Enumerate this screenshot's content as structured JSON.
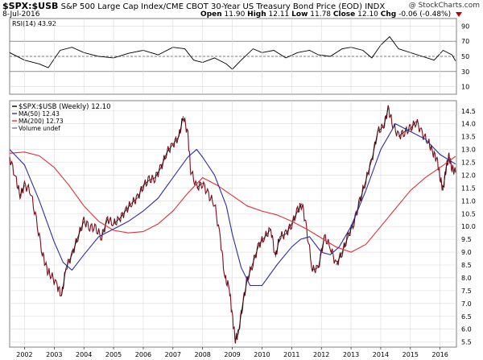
{
  "header": {
    "symbol": "$SPX:$USB",
    "description": "S&P 500 Large Cap Index/CME CBOT 30-Year US Treasury Bond Price (EOD)",
    "exchange": "INDX",
    "date": "8-Jul-2016",
    "brand": "@ StockCharts.com",
    "open_label": "Open",
    "open": "11.90",
    "high_label": "High",
    "high": "12.11",
    "low_label": "Low",
    "low": "11.78",
    "close_label": "Close",
    "close": "12.10",
    "chg_label": "Chg",
    "chg": "-0.06 (-0.48%)"
  },
  "colors": {
    "price": "#7a0b1a",
    "price_black": "#000000",
    "ma50": "#2c2ca8",
    "ma200": "#e0303a",
    "rsi": "#000000",
    "grid": "#d9d9d9",
    "panel_border": "#808080"
  },
  "legend": {
    "price": "$SPX:$USB (Weekly) 12.10",
    "ma50": "MA(50) 12.43",
    "ma200": "MA(200) 12.73",
    "volume": "Volume undef"
  },
  "rsi_label": "RSI(14) 43.92",
  "chart_data": [
    {
      "type": "line",
      "panel": "rsi",
      "series": [
        {
          "name": "RSI(14)",
          "x": [
            2001.5,
            2002.0,
            2002.5,
            2002.8,
            2003.2,
            2003.6,
            2004.0,
            2004.5,
            2005.0,
            2005.5,
            2006.0,
            2006.5,
            2007.0,
            2007.4,
            2007.7,
            2008.0,
            2008.4,
            2008.8,
            2009.0,
            2009.3,
            2009.7,
            2010.0,
            2010.4,
            2010.8,
            2011.2,
            2011.6,
            2011.9,
            2012.3,
            2012.7,
            2013.0,
            2013.4,
            2013.7,
            2014.0,
            2014.3,
            2014.6,
            2015.0,
            2015.4,
            2015.8,
            2016.1,
            2016.4,
            2016.52
          ],
          "y": [
            55,
            45,
            40,
            35,
            58,
            62,
            55,
            50,
            48,
            54,
            58,
            52,
            62,
            60,
            45,
            42,
            48,
            40,
            33,
            45,
            60,
            55,
            58,
            48,
            55,
            58,
            52,
            50,
            60,
            62,
            58,
            48,
            65,
            76,
            60,
            55,
            50,
            45,
            58,
            52,
            44
          ]
        }
      ],
      "ylim": [
        0,
        100
      ],
      "yticks": [
        10,
        30,
        50,
        70,
        90
      ],
      "bands": [
        30,
        50,
        70
      ]
    },
    {
      "type": "line",
      "panel": "price",
      "xlabels": [
        "2002",
        "2003",
        "2004",
        "2005",
        "2006",
        "2007",
        "2008",
        "2009",
        "2010",
        "2011",
        "2012",
        "2013",
        "2014",
        "2015",
        "2016"
      ],
      "xlim": [
        2001.5,
        2016.55
      ],
      "ylim": [
        5.3,
        14.9
      ],
      "yticks": [
        5.5,
        6.0,
        6.5,
        7.0,
        7.5,
        8.0,
        8.5,
        9.0,
        9.5,
        10.0,
        10.5,
        11.0,
        11.5,
        12.0,
        12.5,
        13.0,
        13.5,
        14.0,
        14.5
      ],
      "series": [
        {
          "name": "$SPX:$USB (Weekly)",
          "x": [
            2001.5,
            2001.7,
            2001.85,
            2002.0,
            2002.2,
            2002.4,
            2002.6,
            2002.75,
            2002.9,
            2003.1,
            2003.25,
            2003.4,
            2003.6,
            2003.8,
            2004.0,
            2004.2,
            2004.4,
            2004.6,
            2004.8,
            2005.0,
            2005.2,
            2005.4,
            2005.6,
            2005.8,
            2006.0,
            2006.2,
            2006.4,
            2006.6,
            2006.8,
            2007.0,
            2007.2,
            2007.35,
            2007.5,
            2007.6,
            2007.8,
            2008.0,
            2008.2,
            2008.4,
            2008.6,
            2008.75,
            2008.9,
            2009.0,
            2009.1,
            2009.2,
            2009.35,
            2009.5,
            2009.7,
            2009.9,
            2010.1,
            2010.3,
            2010.45,
            2010.6,
            2010.8,
            2011.0,
            2011.2,
            2011.35,
            2011.5,
            2011.7,
            2011.9,
            2012.1,
            2012.3,
            2012.5,
            2012.7,
            2012.9,
            2013.1,
            2013.3,
            2013.5,
            2013.7,
            2013.9,
            2014.1,
            2014.25,
            2014.4,
            2014.6,
            2014.8,
            2015.0,
            2015.2,
            2015.4,
            2015.6,
            2015.75,
            2015.9,
            2016.0,
            2016.1,
            2016.2,
            2016.3,
            2016.4,
            2016.52
          ],
          "y": [
            12.7,
            11.9,
            11.2,
            11.6,
            11.4,
            10.2,
            9.0,
            8.3,
            8.1,
            7.7,
            7.3,
            8.4,
            8.9,
            9.6,
            10.2,
            10.0,
            9.9,
            9.6,
            10.3,
            10.1,
            10.3,
            10.6,
            10.9,
            11.1,
            11.6,
            11.8,
            11.9,
            12.3,
            12.9,
            13.2,
            13.5,
            14.3,
            13.6,
            12.2,
            11.5,
            11.7,
            11.2,
            10.9,
            9.5,
            8.0,
            7.6,
            6.5,
            5.6,
            5.8,
            7.0,
            7.9,
            8.6,
            9.3,
            9.6,
            9.9,
            8.8,
            9.6,
            9.7,
            10.1,
            10.6,
            10.9,
            9.9,
            8.3,
            8.4,
            9.6,
            9.2,
            8.5,
            9.0,
            9.6,
            10.2,
            11.0,
            11.8,
            12.6,
            13.7,
            13.9,
            14.6,
            14.0,
            13.5,
            13.7,
            13.8,
            14.1,
            13.6,
            13.3,
            12.9,
            12.6,
            11.9,
            11.4,
            12.3,
            12.7,
            12.3,
            12.1
          ]
        },
        {
          "name": "MA(50)",
          "x": [
            2001.5,
            2002.0,
            2002.5,
            2003.0,
            2003.3,
            2003.6,
            2004.0,
            2004.5,
            2005.0,
            2005.5,
            2006.0,
            2006.5,
            2007.0,
            2007.5,
            2007.8,
            2008.0,
            2008.4,
            2008.8,
            2009.0,
            2009.3,
            2009.6,
            2010.0,
            2010.5,
            2011.0,
            2011.3,
            2011.6,
            2012.0,
            2012.3,
            2012.6,
            2013.0,
            2013.5,
            2014.0,
            2014.5,
            2015.0,
            2015.5,
            2016.0,
            2016.52
          ],
          "y": [
            13.0,
            12.4,
            11.0,
            9.4,
            8.6,
            8.3,
            8.9,
            9.6,
            9.9,
            10.2,
            10.6,
            11.1,
            11.9,
            12.7,
            13.0,
            12.7,
            12.0,
            10.8,
            9.7,
            8.4,
            7.7,
            7.7,
            8.5,
            9.2,
            9.5,
            9.6,
            9.0,
            8.9,
            9.2,
            10.0,
            11.4,
            13.0,
            14.0,
            13.7,
            13.4,
            12.8,
            12.43
          ]
        },
        {
          "name": "MA(200)",
          "x": [
            2001.5,
            2002.0,
            2002.5,
            2003.0,
            2003.5,
            2004.0,
            2004.5,
            2005.0,
            2005.5,
            2006.0,
            2006.5,
            2007.0,
            2007.5,
            2008.0,
            2008.5,
            2009.0,
            2009.5,
            2010.0,
            2010.5,
            2011.0,
            2011.5,
            2012.0,
            2012.5,
            2013.0,
            2013.5,
            2014.0,
            2014.5,
            2015.0,
            2015.5,
            2016.0,
            2016.52
          ],
          "y": [
            12.85,
            12.9,
            12.75,
            12.3,
            11.6,
            10.8,
            10.2,
            9.85,
            9.75,
            9.8,
            10.1,
            10.6,
            11.3,
            11.9,
            11.6,
            11.2,
            10.8,
            10.6,
            10.45,
            10.2,
            9.9,
            9.55,
            9.2,
            9.0,
            9.3,
            10.0,
            10.7,
            11.4,
            11.9,
            12.3,
            12.73
          ]
        }
      ]
    }
  ]
}
